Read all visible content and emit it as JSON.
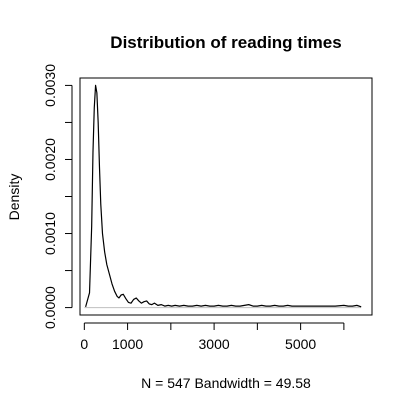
{
  "chart_data": {
    "type": "line",
    "title": "Distribution of reading times",
    "xlabel": "N = 547   Bandwidth = 49.58",
    "ylabel": "Density",
    "xlim": [
      -100,
      6650
    ],
    "ylim": [
      -0.0001,
      0.0031
    ],
    "x_ticks": [
      {
        "value": 1000,
        "label": "1000"
      },
      {
        "value": 3000,
        "label": "3000"
      },
      {
        "value": 5000,
        "label": "5000"
      }
    ],
    "x_minor_ticks": [
      0,
      2000,
      4000,
      6000
    ],
    "x_minor_tick_labels": [
      {
        "value": 0,
        "label": "0"
      }
    ],
    "y_ticks": [
      {
        "value": 0.0,
        "label": "0.0000"
      },
      {
        "value": 0.001,
        "label": "0.0010"
      },
      {
        "value": 0.002,
        "label": "0.0020"
      },
      {
        "value": 0.003,
        "label": "0.0030"
      }
    ],
    "y_minor_ticks": [
      0.0005,
      0.0015,
      0.0025
    ],
    "series": [
      {
        "x": [
          30,
          120,
          170,
          200,
          230,
          260,
          290,
          320,
          350,
          380,
          420,
          470,
          520,
          580,
          640,
          700,
          760,
          800,
          850,
          900,
          960,
          1020,
          1080,
          1140,
          1200,
          1260,
          1320,
          1380,
          1440,
          1500,
          1560,
          1620,
          1700,
          1780,
          1860,
          1940,
          2020,
          2100,
          2200,
          2300,
          2400,
          2500,
          2600,
          2700,
          2800,
          2900,
          3000,
          3100,
          3200,
          3300,
          3400,
          3500,
          3600,
          3700,
          3800,
          3900,
          4000,
          4100,
          4200,
          4300,
          4400,
          4500,
          4600,
          4700,
          4800,
          4900,
          5000,
          5200,
          5400,
          5600,
          5800,
          6000,
          6100,
          6200,
          6300,
          6400
        ],
        "y": [
          1e-05,
          0.0002,
          0.0011,
          0.0021,
          0.0027,
          0.003,
          0.0029,
          0.0025,
          0.0019,
          0.0014,
          0.001,
          0.00075,
          0.00058,
          0.00045,
          0.00032,
          0.00022,
          0.00015,
          0.00013,
          0.00017,
          0.00018,
          0.00012,
          7e-05,
          6e-05,
          0.00011,
          0.00013,
          9e-05,
          6e-05,
          8e-05,
          9e-05,
          5e-05,
          4e-05,
          6e-05,
          3e-05,
          4e-05,
          2e-05,
          3e-05,
          2e-05,
          3e-05,
          2e-05,
          3e-05,
          2e-05,
          2e-05,
          3e-05,
          2e-05,
          3e-05,
          2e-05,
          2e-05,
          3e-05,
          2e-05,
          2e-05,
          3e-05,
          2e-05,
          2e-05,
          3e-05,
          4e-05,
          2e-05,
          2e-05,
          3e-05,
          2e-05,
          2e-05,
          3e-05,
          2e-05,
          2e-05,
          3e-05,
          2e-05,
          2e-05,
          2e-05,
          2e-05,
          2e-05,
          2e-05,
          2e-05,
          3e-05,
          2e-05,
          2e-05,
          3e-05,
          1e-05
        ]
      }
    ],
    "grid": false,
    "zero_line": true,
    "colors": {
      "curve": "#000000",
      "zero_line": "#bfbfbf"
    }
  }
}
